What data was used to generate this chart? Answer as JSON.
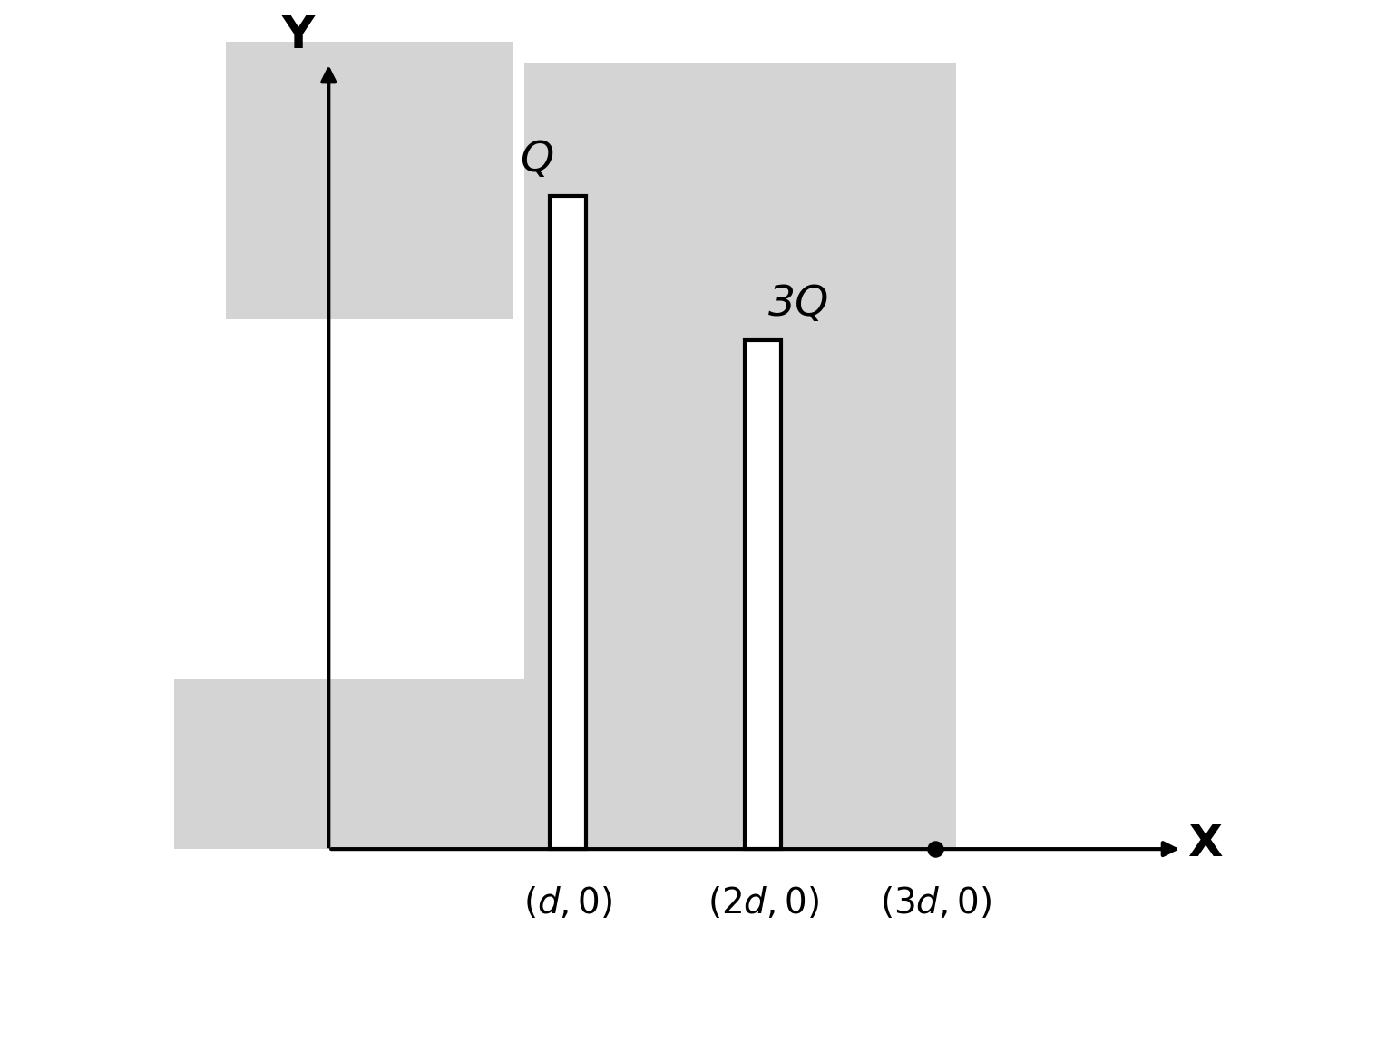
{
  "bg_color": "#d4d4d4",
  "white_color": "#ffffff",
  "plate_color": "#000000",
  "plate1_label": "Q",
  "plate2_label": "3Q",
  "xlabel": "X",
  "ylabel": "Y",
  "label_fontsize": 34,
  "tick_fontsize": 28,
  "axis_label_fontsize": 36,
  "dot_size": 150,
  "line_width": 3.0
}
